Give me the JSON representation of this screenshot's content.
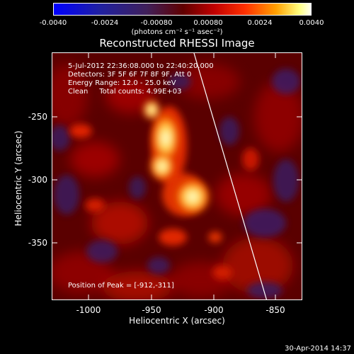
{
  "colorbar": {
    "tick_labels": [
      "-0.0040",
      "-0.0024",
      "-0.00080",
      "0.00080",
      "0.0024",
      "0.0040"
    ],
    "unit_label": "(photons cm⁻² s⁻¹ asec⁻²)"
  },
  "title": "Reconstructed RHESSI Image",
  "info": {
    "time": "5-Jul-2012 22:36:08.000 to 22:40:20.000",
    "detectors": "Detectors: 3F 5F 6F 7F 8F 9F, Att 0",
    "energy": "Energy Range: 12.0 - 25.0 keV",
    "clean": "Clean     Total counts: 4.99E+03",
    "peak": "Position of Peak = [-912,-311]"
  },
  "axes": {
    "xlabel": "Heliocentric X (arcsec)",
    "ylabel": "Heliocentric Y (arcsec)",
    "xticks": [
      "-1000",
      "-950",
      "-900",
      "-850"
    ],
    "yticks": [
      "-250",
      "-300",
      "-350"
    ]
  },
  "footer": {
    "date": "30-Apr-2014 14:37"
  }
}
